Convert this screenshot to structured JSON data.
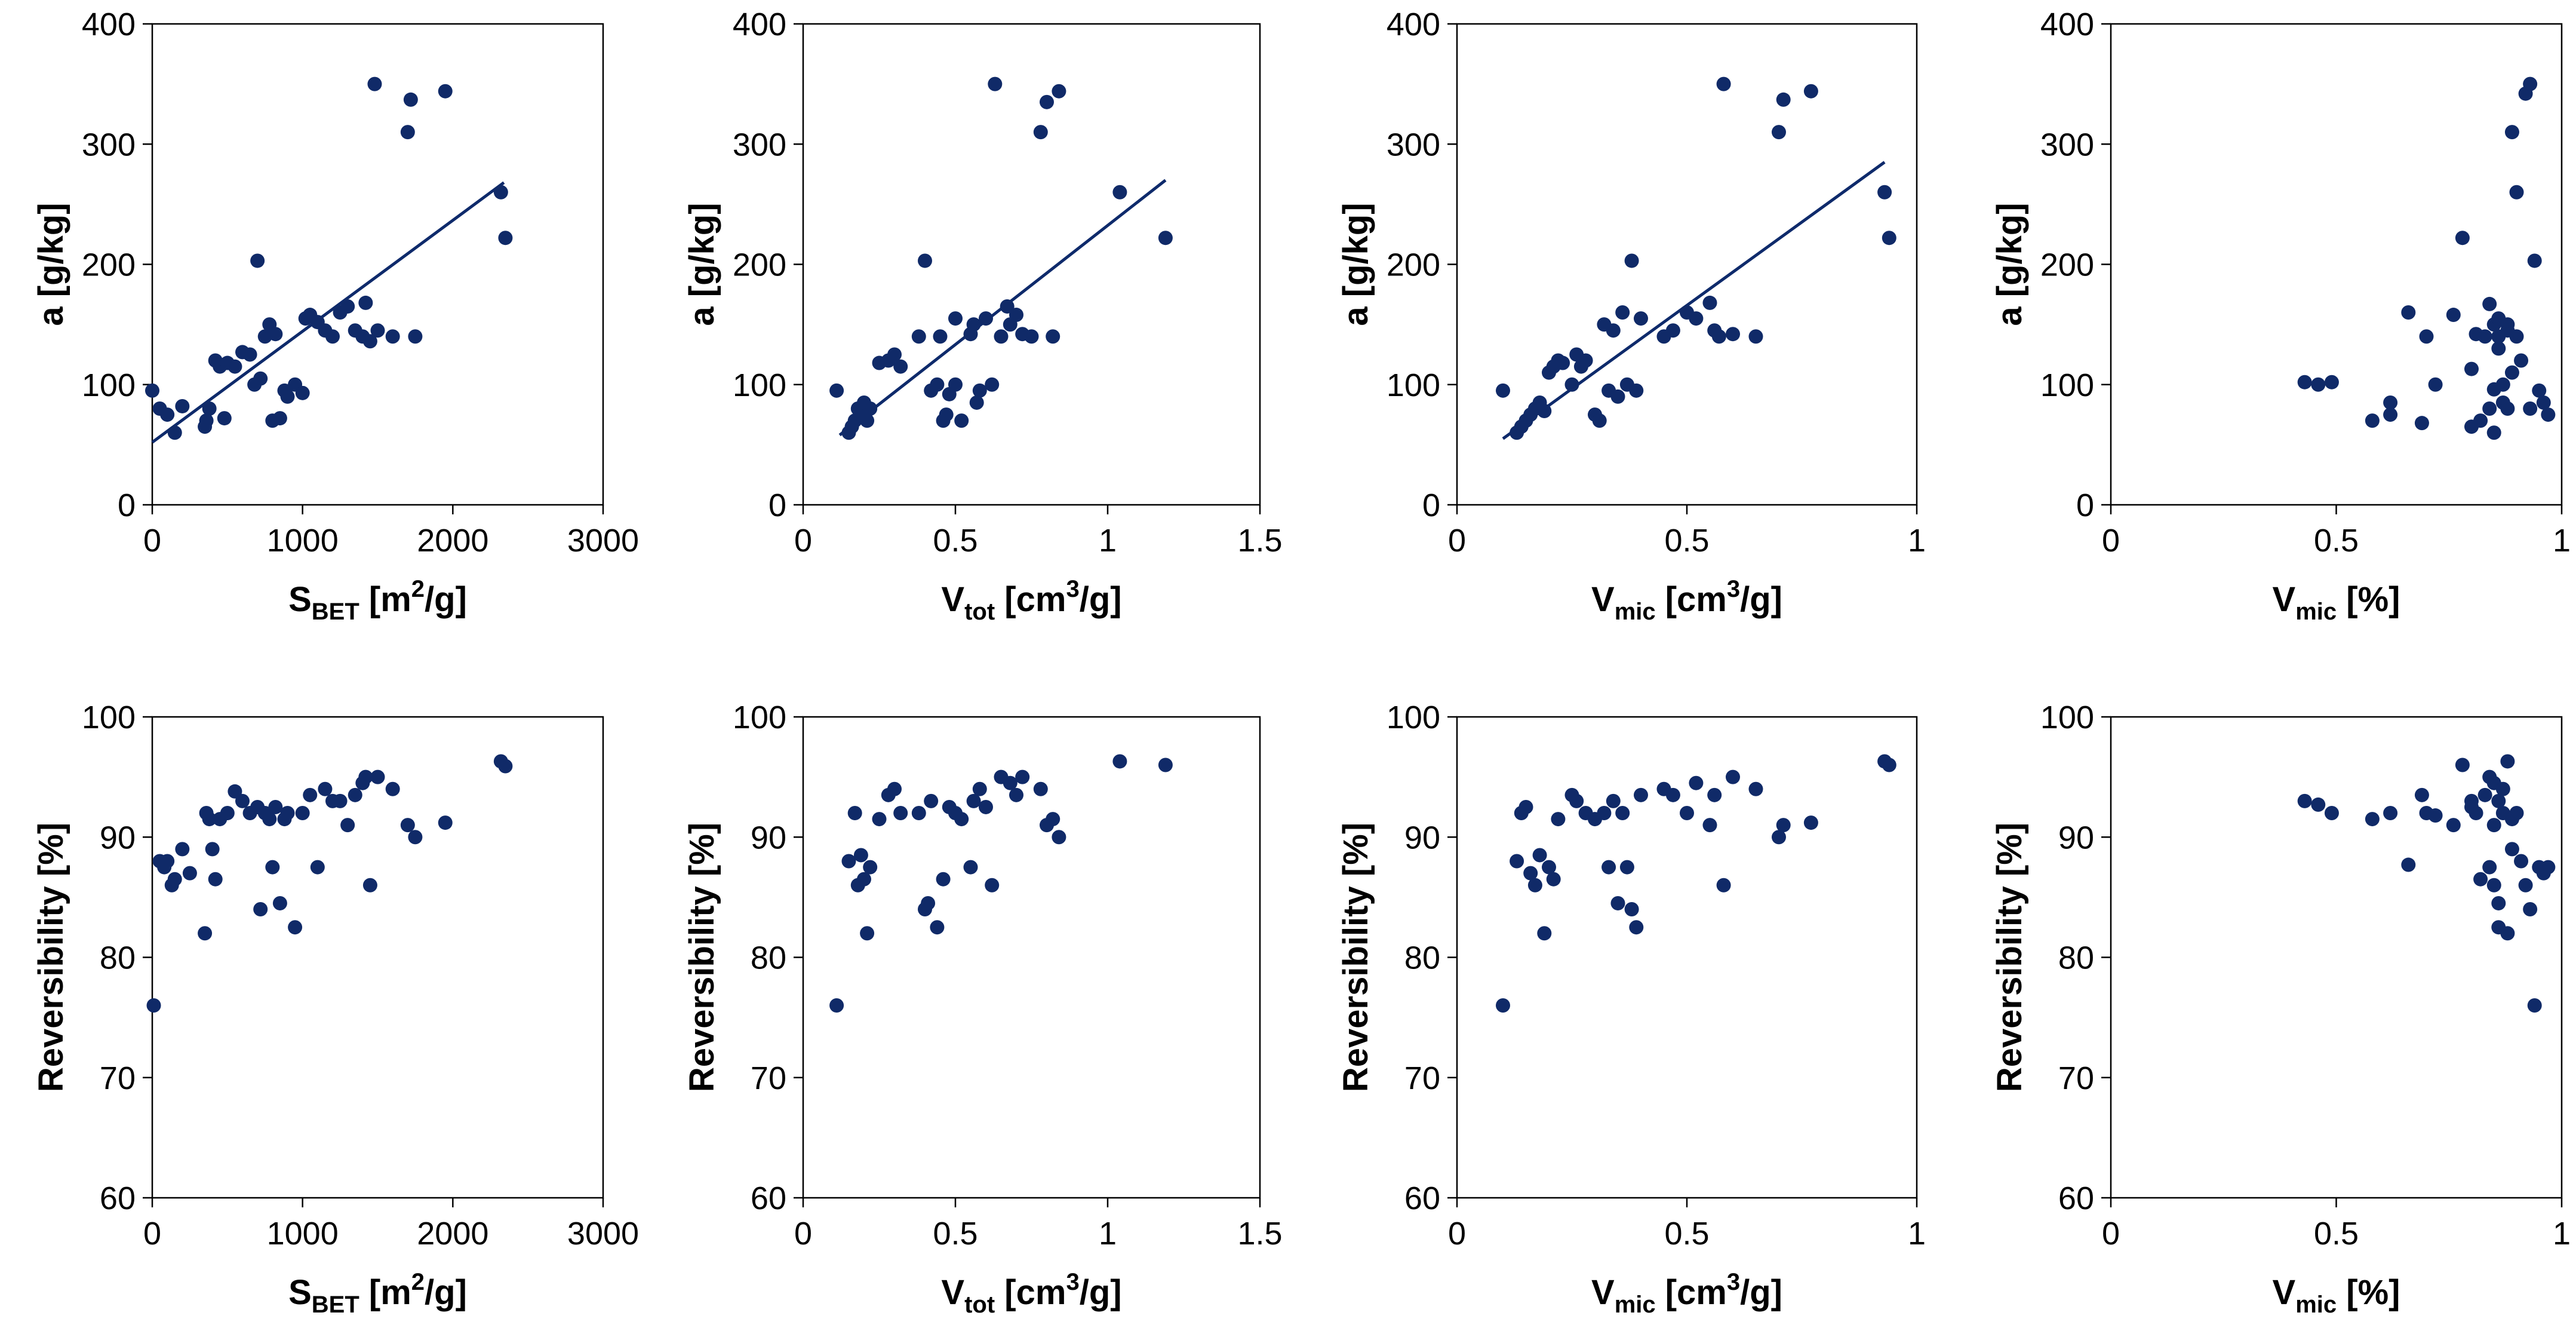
{
  "chart_data": [
    {
      "type": "scatter",
      "xlabel": {
        "main": "S",
        "sub": "BET",
        "rest": " [m",
        "sup": "2",
        "end": "/g]"
      },
      "ylabel": "a [g/kg]",
      "xlim": [
        0,
        3000
      ],
      "ylim": [
        0,
        400
      ],
      "xticks": [
        0,
        1000,
        2000,
        3000
      ],
      "yticks": [
        0,
        100,
        200,
        300,
        400
      ],
      "x": [
        0,
        50,
        100,
        150,
        200,
        350,
        360,
        380,
        420,
        450,
        480,
        500,
        550,
        600,
        650,
        680,
        700,
        720,
        750,
        780,
        800,
        820,
        850,
        880,
        900,
        950,
        1000,
        1020,
        1050,
        1100,
        1150,
        1200,
        1250,
        1300,
        1350,
        1400,
        1420,
        1450,
        1480,
        1500,
        1600,
        1700,
        1720,
        1750,
        1950,
        2320,
        2350
      ],
      "y": [
        95,
        80,
        75,
        60,
        82,
        65,
        70,
        80,
        120,
        115,
        72,
        118,
        115,
        127,
        125,
        100,
        203,
        105,
        140,
        150,
        70,
        142,
        72,
        95,
        90,
        100,
        93,
        155,
        158,
        152,
        145,
        140,
        160,
        165,
        145,
        140,
        168,
        136,
        350,
        145,
        140,
        310,
        337,
        140,
        344,
        260,
        222
      ],
      "trendline": {
        "x": [
          0,
          2340
        ],
        "y": [
          52,
          268
        ]
      }
    },
    {
      "type": "scatter",
      "xlabel": {
        "main": "V",
        "sub": "tot",
        "rest": " [cm",
        "sup": "3",
        "end": "/g]"
      },
      "ylabel": "a [g/kg]",
      "xlim": [
        0,
        1.5
      ],
      "ylim": [
        0,
        400
      ],
      "xticks": [
        0,
        0.5,
        1,
        1.5
      ],
      "yticks": [
        0,
        100,
        200,
        300,
        400
      ],
      "x": [
        0.11,
        0.15,
        0.16,
        0.17,
        0.18,
        0.19,
        0.2,
        0.21,
        0.22,
        0.25,
        0.28,
        0.3,
        0.32,
        0.38,
        0.4,
        0.42,
        0.44,
        0.45,
        0.46,
        0.47,
        0.48,
        0.5,
        0.5,
        0.52,
        0.55,
        0.56,
        0.57,
        0.58,
        0.6,
        0.62,
        0.63,
        0.65,
        0.67,
        0.68,
        0.7,
        0.72,
        0.75,
        0.78,
        0.8,
        0.82,
        0.84,
        1.04,
        1.19
      ],
      "y": [
        95,
        60,
        65,
        70,
        80,
        75,
        85,
        70,
        80,
        118,
        120,
        125,
        115,
        140,
        203,
        95,
        100,
        140,
        70,
        75,
        92,
        100,
        155,
        70,
        142,
        150,
        85,
        95,
        155,
        100,
        350,
        140,
        165,
        150,
        158,
        142,
        140,
        310,
        335,
        140,
        344,
        260,
        222
      ],
      "trendline": {
        "x": [
          0.12,
          1.19
        ],
        "y": [
          58,
          270
        ]
      }
    },
    {
      "type": "scatter",
      "xlabel": {
        "main": "V",
        "sub": "mic",
        "rest": " [cm",
        "sup": "3",
        "end": "/g]"
      },
      "ylabel": "a [g/kg]",
      "xlim": [
        0,
        1
      ],
      "ylim": [
        0,
        400
      ],
      "xticks": [
        0,
        0.5,
        1
      ],
      "yticks": [
        0,
        100,
        200,
        300,
        400
      ],
      "x": [
        0.1,
        0.13,
        0.14,
        0.15,
        0.16,
        0.17,
        0.18,
        0.19,
        0.2,
        0.21,
        0.22,
        0.23,
        0.25,
        0.26,
        0.27,
        0.28,
        0.3,
        0.31,
        0.32,
        0.33,
        0.34,
        0.35,
        0.36,
        0.37,
        0.38,
        0.39,
        0.4,
        0.45,
        0.47,
        0.5,
        0.52,
        0.55,
        0.56,
        0.57,
        0.58,
        0.6,
        0.65,
        0.7,
        0.71,
        0.77,
        0.93,
        0.94
      ],
      "y": [
        95,
        60,
        65,
        70,
        75,
        80,
        85,
        78,
        110,
        115,
        120,
        118,
        100,
        125,
        115,
        120,
        75,
        70,
        150,
        95,
        145,
        90,
        160,
        100,
        203,
        95,
        155,
        140,
        145,
        160,
        155,
        168,
        145,
        140,
        350,
        142,
        140,
        310,
        337,
        344,
        260,
        222
      ],
      "trendline": {
        "x": [
          0.1,
          0.93
        ],
        "y": [
          55,
          285
        ]
      }
    },
    {
      "type": "scatter",
      "xlabel": {
        "main": "V",
        "sub": "mic",
        "rest": " [%]",
        "sup": "",
        "end": ""
      },
      "ylabel": "a [g/kg]",
      "xlim": [
        0,
        1
      ],
      "ylim": [
        0,
        400
      ],
      "xticks": [
        0,
        0.5,
        1
      ],
      "yticks": [
        0,
        100,
        200,
        300,
        400
      ],
      "x": [
        0.43,
        0.46,
        0.49,
        0.58,
        0.62,
        0.62,
        0.66,
        0.69,
        0.7,
        0.72,
        0.76,
        0.78,
        0.8,
        0.8,
        0.81,
        0.82,
        0.83,
        0.84,
        0.84,
        0.85,
        0.85,
        0.85,
        0.86,
        0.86,
        0.86,
        0.87,
        0.87,
        0.88,
        0.88,
        0.88,
        0.89,
        0.89,
        0.9,
        0.9,
        0.91,
        0.92,
        0.93,
        0.93,
        0.94,
        0.95,
        0.96,
        0.97
      ],
      "y": [
        102,
        100,
        102,
        70,
        75,
        85,
        160,
        68,
        140,
        100,
        158,
        222,
        65,
        113,
        142,
        70,
        140,
        80,
        167,
        60,
        150,
        96,
        130,
        140,
        155,
        85,
        100,
        80,
        150,
        145,
        310,
        110,
        260,
        140,
        120,
        342,
        80,
        350,
        203,
        95,
        85,
        75
      ],
      "trendline": null
    },
    {
      "type": "scatter",
      "xlabel": {
        "main": "S",
        "sub": "BET",
        "rest": " [m",
        "sup": "2",
        "end": "/g]"
      },
      "ylabel": "Reversibility [%]",
      "xlim": [
        0,
        3000
      ],
      "ylim": [
        60,
        100
      ],
      "xticks": [
        0,
        1000,
        2000,
        3000
      ],
      "yticks": [
        60,
        70,
        80,
        90,
        100
      ],
      "x": [
        10,
        50,
        80,
        100,
        130,
        150,
        200,
        250,
        350,
        360,
        380,
        400,
        420,
        450,
        500,
        550,
        600,
        650,
        700,
        720,
        750,
        780,
        800,
        820,
        850,
        880,
        900,
        950,
        1000,
        1050,
        1100,
        1150,
        1200,
        1250,
        1300,
        1350,
        1400,
        1420,
        1450,
        1500,
        1600,
        1700,
        1750,
        1950,
        2320,
        2350
      ],
      "y": [
        76,
        88,
        87.5,
        88,
        86,
        86.5,
        89,
        87,
        82,
        92,
        91.5,
        89,
        86.5,
        91.5,
        92,
        93.8,
        93,
        92,
        92.5,
        84,
        92,
        91.5,
        87.5,
        92.5,
        84.5,
        91.5,
        92,
        82.5,
        92,
        93.5,
        87.5,
        94,
        93,
        93,
        91,
        93.5,
        94.5,
        95,
        86,
        95,
        94,
        91,
        90,
        91.2,
        96.3,
        95.9
      ],
      "trendline": null
    },
    {
      "type": "scatter",
      "xlabel": {
        "main": "V",
        "sub": "tot",
        "rest": " [cm",
        "sup": "3",
        "end": "/g]"
      },
      "ylabel": "Reversibility [%]",
      "xlim": [
        0,
        1.5
      ],
      "ylim": [
        60,
        100
      ],
      "xticks": [
        0,
        0.5,
        1,
        1.5
      ],
      "yticks": [
        60,
        70,
        80,
        90,
        100
      ],
      "x": [
        0.11,
        0.15,
        0.17,
        0.18,
        0.19,
        0.2,
        0.21,
        0.22,
        0.25,
        0.28,
        0.3,
        0.32,
        0.38,
        0.4,
        0.41,
        0.42,
        0.44,
        0.46,
        0.48,
        0.5,
        0.52,
        0.55,
        0.56,
        0.58,
        0.6,
        0.62,
        0.65,
        0.68,
        0.7,
        0.72,
        0.78,
        0.8,
        0.82,
        0.84,
        1.04,
        1.19
      ],
      "y": [
        76,
        88,
        92,
        86,
        88.5,
        86.5,
        82,
        87.5,
        91.5,
        93.5,
        94,
        92,
        92,
        84,
        84.5,
        93,
        82.5,
        86.5,
        92.5,
        92,
        91.5,
        87.5,
        93,
        94,
        92.5,
        86,
        95,
        94.5,
        93.5,
        95,
        94,
        91,
        91.5,
        90,
        96.3,
        96
      ],
      "trendline": null
    },
    {
      "type": "scatter",
      "xlabel": {
        "main": "V",
        "sub": "mic",
        "rest": " [cm",
        "sup": "3",
        "end": "/g]"
      },
      "ylabel": "Reversibility [%]",
      "xlim": [
        0,
        1
      ],
      "ylim": [
        60,
        100
      ],
      "xticks": [
        0,
        0.5,
        1
      ],
      "yticks": [
        60,
        70,
        80,
        90,
        100
      ],
      "x": [
        0.1,
        0.13,
        0.14,
        0.15,
        0.16,
        0.17,
        0.18,
        0.19,
        0.2,
        0.21,
        0.22,
        0.25,
        0.26,
        0.28,
        0.3,
        0.32,
        0.33,
        0.34,
        0.35,
        0.36,
        0.37,
        0.38,
        0.39,
        0.4,
        0.45,
        0.47,
        0.5,
        0.52,
        0.55,
        0.56,
        0.58,
        0.6,
        0.65,
        0.7,
        0.71,
        0.77,
        0.93,
        0.94
      ],
      "y": [
        76,
        88,
        92,
        92.5,
        87,
        86,
        88.5,
        82,
        87.5,
        86.5,
        91.5,
        93.5,
        93,
        92,
        91.5,
        92,
        87.5,
        93,
        84.5,
        92,
        87.5,
        84,
        82.5,
        93.5,
        94,
        93.5,
        92,
        94.5,
        91,
        93.5,
        86,
        95,
        94,
        90,
        91,
        91.2,
        96.3,
        96
      ],
      "trendline": null
    },
    {
      "type": "scatter",
      "xlabel": {
        "main": "V",
        "sub": "mic",
        "rest": " [%]",
        "sup": "",
        "end": ""
      },
      "ylabel": "Reversibility [%]",
      "xlim": [
        0,
        1
      ],
      "ylim": [
        60,
        100
      ],
      "xticks": [
        0,
        0.5,
        1
      ],
      "yticks": [
        60,
        70,
        80,
        90,
        100
      ],
      "x": [
        0.43,
        0.46,
        0.49,
        0.58,
        0.62,
        0.66,
        0.69,
        0.7,
        0.72,
        0.76,
        0.78,
        0.8,
        0.8,
        0.81,
        0.82,
        0.83,
        0.84,
        0.84,
        0.85,
        0.85,
        0.85,
        0.86,
        0.86,
        0.86,
        0.87,
        0.87,
        0.88,
        0.88,
        0.89,
        0.89,
        0.9,
        0.91,
        0.92,
        0.93,
        0.94,
        0.95,
        0.96,
        0.97
      ],
      "y": [
        93,
        92.7,
        92,
        91.5,
        92,
        87.7,
        93.5,
        92,
        91.8,
        91,
        96,
        93,
        92.5,
        92,
        86.5,
        93.5,
        87.5,
        95,
        86,
        94.5,
        91,
        93,
        84.5,
        82.5,
        94,
        92,
        96.3,
        82,
        91.5,
        89,
        92,
        88,
        86,
        84,
        76,
        87.5,
        87,
        87.5
      ],
      "trendline": null
    }
  ]
}
